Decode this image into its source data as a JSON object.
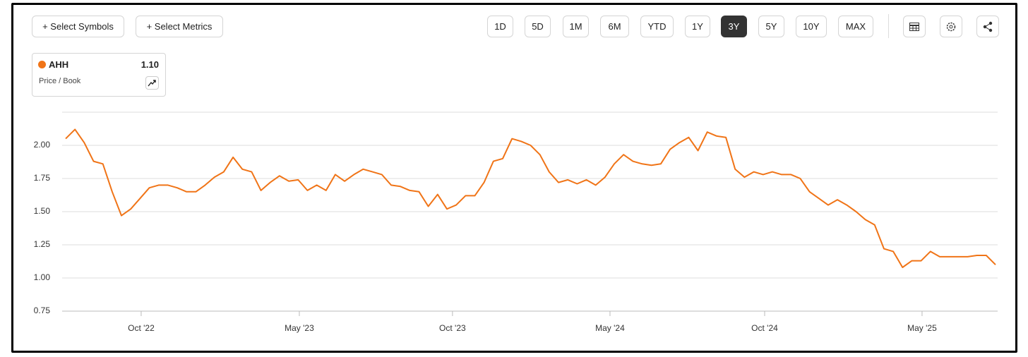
{
  "toolbar": {
    "add_buttons": [
      "+ Select Symbols",
      "+ Select Metrics"
    ],
    "ranges": [
      "1D",
      "5D",
      "1M",
      "6M",
      "YTD",
      "1Y",
      "3Y",
      "5Y",
      "10Y",
      "MAX"
    ],
    "selected_range": 6
  },
  "legend_card": {
    "value": "1.10",
    "metric": "Price / Book"
  },
  "chart_data": {
    "type": "line",
    "series": [
      {
        "name": "AHH",
        "color": "#f07417",
        "values": [
          2.05,
          2.12,
          2.02,
          1.88,
          1.86,
          1.65,
          1.47,
          1.52,
          1.6,
          1.68,
          1.7,
          1.7,
          1.68,
          1.65,
          1.65,
          1.7,
          1.76,
          1.8,
          1.91,
          1.82,
          1.8,
          1.66,
          1.72,
          1.77,
          1.73,
          1.74,
          1.66,
          1.7,
          1.66,
          1.78,
          1.73,
          1.78,
          1.82,
          1.8,
          1.78,
          1.7,
          1.69,
          1.66,
          1.65,
          1.54,
          1.63,
          1.52,
          1.55,
          1.62,
          1.62,
          1.72,
          1.88,
          1.9,
          2.05,
          2.03,
          2.0,
          1.93,
          1.8,
          1.72,
          1.74,
          1.71,
          1.74,
          1.7,
          1.76,
          1.86,
          1.93,
          1.88,
          1.86,
          1.85,
          1.86,
          1.97,
          2.02,
          2.06,
          1.96,
          2.1,
          2.07,
          2.06,
          1.82,
          1.76,
          1.8,
          1.78,
          1.8,
          1.78,
          1.78,
          1.75,
          1.65,
          1.6,
          1.55,
          1.59,
          1.55,
          1.5,
          1.44,
          1.4,
          1.22,
          1.2,
          1.08,
          1.13,
          1.13,
          1.2,
          1.16,
          1.16,
          1.16,
          1.16,
          1.17,
          1.17,
          1.1
        ]
      }
    ],
    "xlim": [
      0,
      100
    ],
    "xticks": [
      {
        "value": 8.12,
        "label": "Oct '22"
      },
      {
        "value": 25.13,
        "label": "May '23"
      },
      {
        "value": 41.6,
        "label": "Oct '23"
      },
      {
        "value": 58.54,
        "label": "May '24"
      },
      {
        "value": 75.17,
        "label": "Oct '24"
      },
      {
        "value": 92.1,
        "label": "May '25"
      }
    ],
    "ylim": [
      0.75,
      2.25
    ],
    "yticks": [
      {
        "value": 0.75,
        "label": "0.75"
      },
      {
        "value": 1,
        "label": "1.00"
      },
      {
        "value": 1.25,
        "label": "1.25"
      },
      {
        "value": 1.5,
        "label": "1.50"
      },
      {
        "value": 1.75,
        "label": "1.75"
      },
      {
        "value": 2,
        "label": "2.00"
      }
    ],
    "grid": true
  }
}
